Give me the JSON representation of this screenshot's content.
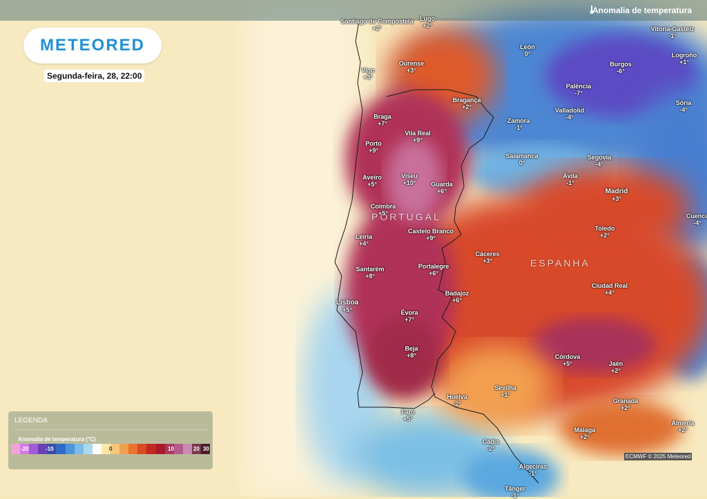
{
  "header": {
    "title": "Anomalia de temperatura",
    "icon": "thermometer-icon"
  },
  "brand": {
    "logo": "METEORED",
    "color": "#1e90d6"
  },
  "date_label": "Segunda-feira, 28, 22:00",
  "countries": {
    "portugal": "PORTUGAL",
    "spain": "ESPANHA"
  },
  "cities": [
    {
      "name": "Santiago de Compostela",
      "value": "+2°"
    },
    {
      "name": "Lugo",
      "value": "+2°"
    },
    {
      "name": "Vigo",
      "value": "+3°"
    },
    {
      "name": "Ourense",
      "value": "+3°"
    },
    {
      "name": "León",
      "value": "0°"
    },
    {
      "name": "Burgos",
      "value": "-6°"
    },
    {
      "name": "Vitoria-Gasteiz",
      "value": "-1°"
    },
    {
      "name": "Logroño",
      "value": "+1°"
    },
    {
      "name": "Bragança",
      "value": "+2°"
    },
    {
      "name": "Braga",
      "value": "+7°"
    },
    {
      "name": "Palência",
      "value": "-7°"
    },
    {
      "name": "Zamora",
      "value": "-1°"
    },
    {
      "name": "Valladolid",
      "value": "-4°"
    },
    {
      "name": "Sória",
      "value": "-4°"
    },
    {
      "name": "Vila Real",
      "value": "+9°"
    },
    {
      "name": "Porto",
      "value": "+9°"
    },
    {
      "name": "Salamanca",
      "value": "0°"
    },
    {
      "name": "Segovia",
      "value": "-4°"
    },
    {
      "name": "Aveiro",
      "value": "+5°"
    },
    {
      "name": "Viseu",
      "value": "+10°"
    },
    {
      "name": "Guarda",
      "value": "+6°"
    },
    {
      "name": "Ávila",
      "value": "-1°"
    },
    {
      "name": "Madrid",
      "value": "+3°"
    },
    {
      "name": "Coimbra",
      "value": "+5°"
    },
    {
      "name": "Cuenca",
      "value": "-4°"
    },
    {
      "name": "Castelo Branco",
      "value": "+9°"
    },
    {
      "name": "Toledo",
      "value": "+2°"
    },
    {
      "name": "Leiria",
      "value": "+4°"
    },
    {
      "name": "Cáceres",
      "value": "+3°"
    },
    {
      "name": "Santarém",
      "value": "+8°"
    },
    {
      "name": "Portalegre",
      "value": "+6°"
    },
    {
      "name": "Ciudad Real",
      "value": "+4°"
    },
    {
      "name": "Lisboa",
      "value": "+5°"
    },
    {
      "name": "Badajoz",
      "value": "+6°"
    },
    {
      "name": "Évora",
      "value": "+7°"
    },
    {
      "name": "Beja",
      "value": "+8°"
    },
    {
      "name": "Córdova",
      "value": "+5°"
    },
    {
      "name": "Jaén",
      "value": "+2°"
    },
    {
      "name": "Sevilha",
      "value": "+1°"
    },
    {
      "name": "Huelva",
      "value": "-2°"
    },
    {
      "name": "Granada",
      "value": "+2°"
    },
    {
      "name": "Faro",
      "value": "+5°"
    },
    {
      "name": "Málaga",
      "value": "+2°"
    },
    {
      "name": "Almería",
      "value": "+2°"
    },
    {
      "name": "Cádis",
      "value": "-2°"
    },
    {
      "name": "Algeciras",
      "value": "-1°"
    },
    {
      "name": "Tânger",
      "value": "-1°"
    }
  ],
  "legend": {
    "title": "LEGENDA",
    "subtitle": "Anomalia de temperatura (°C)",
    "ticks": [
      "-20",
      "-10",
      "0",
      "10",
      "20",
      "30"
    ],
    "colors": [
      "#f3a3d8",
      "#d37ae6",
      "#a35ad6",
      "#6a3fb8",
      "#3c4aa8",
      "#2f6bc4",
      "#4d95da",
      "#7bbbe8",
      "#a9d8f2",
      "#ffffff",
      "#fde7a8",
      "#f6c67a",
      "#f1a050",
      "#e8742f",
      "#d84a22",
      "#c22a1e",
      "#a81a2a",
      "#a73a5e",
      "#b25a8a",
      "#c88bb0",
      "#7a3a52",
      "#4a1c2a"
    ]
  },
  "credit": "ECMWF © 2025 Meteored",
  "colors": {
    "sea": "#f7e8b8",
    "hot": "#d43a22",
    "very_hot": "#a8305a",
    "cold": "#3a64c4",
    "very_cold": "#5a4ac6"
  }
}
